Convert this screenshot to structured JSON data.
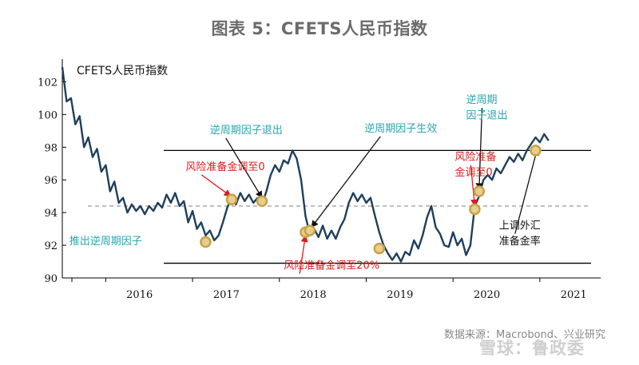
{
  "figure_title": "图表 5：CFETS人民币指数",
  "source": "数据来源：Macrobond、兴业研究",
  "watermark": "雪球：鲁政委",
  "chart_data": {
    "type": "line",
    "title": "CFETS人民币指数",
    "ylim": [
      90,
      103
    ],
    "yticks": [
      90,
      92,
      94,
      96,
      98,
      100,
      102
    ],
    "xlim": [
      2015.5,
      2021.7
    ],
    "xtick_labels": [
      "2016",
      "2017",
      "2018",
      "2019",
      "2020",
      "2021"
    ],
    "colors": {
      "line": "#1f3f5b",
      "ref": "#000000",
      "dash": "#999999",
      "marker": "#c9a14a",
      "arrow_red": "#d81e1e",
      "arrow_black": "#111111",
      "annot_teal": "#2aa6b0",
      "annot_red": "#d81e1e"
    },
    "reference_lines": {
      "upper": 97.8,
      "lower": 90.9,
      "dashed": 94.4
    },
    "series": [
      {
        "values": [
          [
            2015.5,
            102.9
          ],
          [
            2015.55,
            100.8
          ],
          [
            2015.6,
            101.0
          ],
          [
            2015.65,
            99.4
          ],
          [
            2015.7,
            99.9
          ],
          [
            2015.75,
            98.0
          ],
          [
            2015.8,
            98.6
          ],
          [
            2015.85,
            97.4
          ],
          [
            2015.9,
            97.9
          ],
          [
            2015.95,
            96.5
          ],
          [
            2016.0,
            96.9
          ],
          [
            2016.05,
            95.3
          ],
          [
            2016.1,
            95.9
          ],
          [
            2016.15,
            94.6
          ],
          [
            2016.2,
            94.9
          ],
          [
            2016.25,
            94.0
          ],
          [
            2016.3,
            94.5
          ],
          [
            2016.35,
            94.1
          ],
          [
            2016.4,
            94.4
          ],
          [
            2016.45,
            93.9
          ],
          [
            2016.5,
            94.4
          ],
          [
            2016.55,
            94.1
          ],
          [
            2016.6,
            94.6
          ],
          [
            2016.65,
            94.3
          ],
          [
            2016.7,
            95.1
          ],
          [
            2016.75,
            94.6
          ],
          [
            2016.8,
            95.2
          ],
          [
            2016.85,
            94.4
          ],
          [
            2016.9,
            94.7
          ],
          [
            2016.95,
            93.4
          ],
          [
            2017.0,
            94.1
          ],
          [
            2017.05,
            93.0
          ],
          [
            2017.1,
            93.4
          ],
          [
            2017.15,
            92.6
          ],
          [
            2017.2,
            92.9
          ],
          [
            2017.25,
            92.3
          ],
          [
            2017.3,
            92.6
          ],
          [
            2017.35,
            93.4
          ],
          [
            2017.4,
            94.3
          ],
          [
            2017.45,
            94.9
          ],
          [
            2017.5,
            94.5
          ],
          [
            2017.55,
            95.2
          ],
          [
            2017.6,
            94.7
          ],
          [
            2017.65,
            95.1
          ],
          [
            2017.7,
            94.6
          ],
          [
            2017.75,
            94.9
          ],
          [
            2017.8,
            94.5
          ],
          [
            2017.85,
            95.3
          ],
          [
            2017.9,
            96.3
          ],
          [
            2017.95,
            96.9
          ],
          [
            2018.0,
            96.5
          ],
          [
            2018.05,
            97.2
          ],
          [
            2018.1,
            97.0
          ],
          [
            2018.15,
            97.8
          ],
          [
            2018.2,
            97.3
          ],
          [
            2018.25,
            96.0
          ],
          [
            2018.3,
            93.8
          ],
          [
            2018.35,
            92.7
          ],
          [
            2018.4,
            93.0
          ],
          [
            2018.45,
            92.5
          ],
          [
            2018.5,
            93.2
          ],
          [
            2018.55,
            92.4
          ],
          [
            2018.6,
            92.9
          ],
          [
            2018.65,
            92.4
          ],
          [
            2018.7,
            93.1
          ],
          [
            2018.75,
            93.6
          ],
          [
            2018.8,
            94.6
          ],
          [
            2018.85,
            95.2
          ],
          [
            2018.9,
            94.7
          ],
          [
            2018.95,
            95.1
          ],
          [
            2019.0,
            94.6
          ],
          [
            2019.05,
            94.9
          ],
          [
            2019.1,
            93.8
          ],
          [
            2019.15,
            92.8
          ],
          [
            2019.2,
            92.0
          ],
          [
            2019.25,
            91.5
          ],
          [
            2019.3,
            91.1
          ],
          [
            2019.35,
            91.5
          ],
          [
            2019.4,
            91.0
          ],
          [
            2019.45,
            91.6
          ],
          [
            2019.5,
            91.4
          ],
          [
            2019.55,
            92.3
          ],
          [
            2019.6,
            91.8
          ],
          [
            2019.65,
            92.6
          ],
          [
            2019.7,
            93.7
          ],
          [
            2019.75,
            94.4
          ],
          [
            2019.8,
            93.1
          ],
          [
            2019.85,
            92.7
          ],
          [
            2019.9,
            92.0
          ],
          [
            2019.95,
            91.9
          ],
          [
            2020.0,
            92.8
          ],
          [
            2020.05,
            92.0
          ],
          [
            2020.1,
            92.4
          ],
          [
            2020.15,
            91.4
          ],
          [
            2020.2,
            92.0
          ],
          [
            2020.25,
            94.4
          ],
          [
            2020.3,
            95.0
          ],
          [
            2020.35,
            96.0
          ],
          [
            2020.4,
            96.3
          ],
          [
            2020.45,
            96.0
          ],
          [
            2020.5,
            96.7
          ],
          [
            2020.55,
            96.4
          ],
          [
            2020.6,
            96.9
          ],
          [
            2020.65,
            97.4
          ],
          [
            2020.7,
            97.1
          ],
          [
            2020.75,
            97.6
          ],
          [
            2020.8,
            97.2
          ],
          [
            2020.85,
            97.8
          ],
          [
            2020.9,
            98.2
          ],
          [
            2020.95,
            98.6
          ],
          [
            2021.0,
            98.3
          ],
          [
            2021.05,
            98.8
          ],
          [
            2021.1,
            98.4
          ]
        ]
      }
    ],
    "markers": [
      {
        "x": 2017.15,
        "y": 92.2
      },
      {
        "x": 2017.45,
        "y": 94.8
      },
      {
        "x": 2017.8,
        "y": 94.7
      },
      {
        "x": 2018.3,
        "y": 92.8
      },
      {
        "x": 2018.35,
        "y": 92.9
      },
      {
        "x": 2019.15,
        "y": 91.8
      },
      {
        "x": 2020.25,
        "y": 94.2
      },
      {
        "x": 2020.3,
        "y": 95.3
      },
      {
        "x": 2020.95,
        "y": 97.8
      }
    ],
    "annotations": [
      {
        "text": "推出逆周期因子",
        "color": "teal",
        "x": 2015.58,
        "y": 92.05,
        "ax": 2017.12,
        "ay": 92.22,
        "arrow": "none"
      },
      {
        "text": "逆周期因子退出",
        "color": "teal",
        "x": 2017.2,
        "y": 98.85,
        "ax": 2017.8,
        "ay": 94.9,
        "arrow": "black"
      },
      {
        "text": "风险准备金调至0",
        "color": "red",
        "x": 2016.92,
        "y": 96.6,
        "ax": 2017.44,
        "ay": 95.0,
        "arrow": "red"
      },
      {
        "text": "逆周期因子生效",
        "color": "teal",
        "x": 2018.98,
        "y": 98.95,
        "ax": 2018.37,
        "ay": 93.1,
        "arrow": "black"
      },
      {
        "text": "风险准备金调至20%",
        "color": "red",
        "x": 2018.05,
        "y": 90.55,
        "ax": 2018.3,
        "ay": 92.6,
        "arrow": "red"
      },
      {
        "text": "风险准备",
        "color": "red",
        "x": 2020.02,
        "y": 97.2,
        "ax": 2020.25,
        "ay": 94.4,
        "arrow": "red"
      },
      {
        "text": "金调至0",
        "color": "red",
        "x": 2020.02,
        "y": 96.25,
        "ax": 2020.25,
        "ay": 94.4,
        "arrow": "none"
      },
      {
        "text": "逆周期",
        "color": "teal",
        "x": 2020.15,
        "y": 100.7,
        "ax": 2020.3,
        "ay": 95.4,
        "arrow": "black"
      },
      {
        "text": "因子退出",
        "color": "teal",
        "x": 2020.15,
        "y": 99.75,
        "ax": 2020.3,
        "ay": 95.4,
        "arrow": "none"
      },
      {
        "text": "上调外汇",
        "color": "black",
        "x": 2020.53,
        "y": 93.0,
        "ax": 2020.97,
        "ay": 97.9,
        "arrow": "black"
      },
      {
        "text": "准备金率",
        "color": "black",
        "x": 2020.53,
        "y": 92.05,
        "ax": 2020.97,
        "ay": 97.9,
        "arrow": "none"
      }
    ]
  }
}
